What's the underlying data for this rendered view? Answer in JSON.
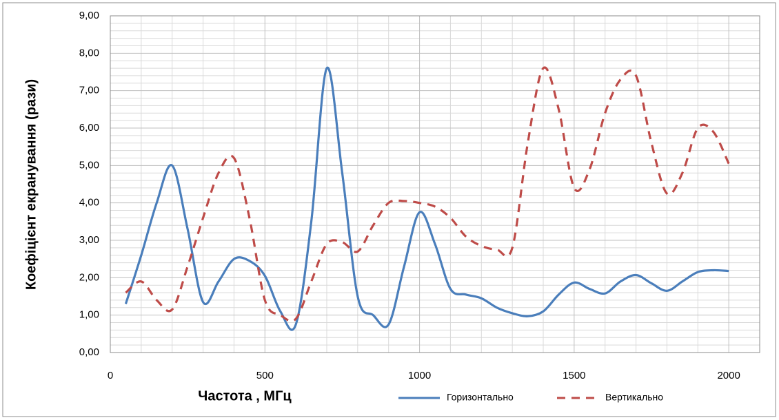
{
  "chart_data": {
    "type": "line",
    "x_label": "Частота , МГц",
    "y_label": "Коефіцієнт екранування  (рази)",
    "x": [
      50,
      100,
      150,
      200,
      250,
      300,
      350,
      400,
      450,
      500,
      550,
      600,
      650,
      700,
      750,
      800,
      850,
      900,
      950,
      1000,
      1050,
      1100,
      1150,
      1200,
      1250,
      1300,
      1350,
      1400,
      1450,
      1500,
      1550,
      1600,
      1650,
      1700,
      1750,
      1800,
      1850,
      1900,
      1950,
      2000
    ],
    "series": [
      {
        "name": "Горизонтально",
        "color": "#4a7ebb",
        "dash": false,
        "values": [
          1.3,
          2.6,
          4.0,
          5.0,
          3.3,
          1.35,
          1.9,
          2.5,
          2.45,
          2.05,
          1.1,
          0.75,
          3.5,
          7.6,
          4.8,
          1.5,
          1.0,
          0.75,
          2.3,
          3.75,
          2.9,
          1.7,
          1.55,
          1.45,
          1.2,
          1.05,
          0.97,
          1.1,
          1.55,
          1.87,
          1.7,
          1.58,
          1.9,
          2.07,
          1.85,
          1.65,
          1.9,
          2.15,
          2.2,
          2.18
        ]
      },
      {
        "name": "Вертикально",
        "color": "#be4b48",
        "dash": true,
        "values": [
          1.6,
          1.9,
          1.4,
          1.15,
          2.3,
          3.6,
          4.8,
          5.2,
          3.6,
          1.4,
          1.0,
          0.9,
          1.9,
          2.9,
          2.95,
          2.7,
          3.4,
          4.0,
          4.05,
          4.0,
          3.9,
          3.6,
          3.1,
          2.85,
          2.75,
          2.8,
          5.6,
          7.6,
          6.5,
          4.4,
          4.9,
          6.4,
          7.3,
          7.4,
          5.6,
          4.25,
          4.8,
          6.0,
          5.9,
          5.05
        ]
      }
    ],
    "xlim": [
      0,
      2100
    ],
    "xticks": [
      0,
      500,
      1000,
      1500,
      2000
    ],
    "ylim": [
      0,
      9
    ],
    "yticks": [
      {
        "value": 0,
        "label": "0,00"
      },
      {
        "value": 1,
        "label": "1,00"
      },
      {
        "value": 2,
        "label": "2,00"
      },
      {
        "value": 3,
        "label": "3,00"
      },
      {
        "value": 4,
        "label": "4,00"
      },
      {
        "value": 5,
        "label": "5,00"
      },
      {
        "value": 6,
        "label": "6,00"
      },
      {
        "value": 7,
        "label": "7,00"
      },
      {
        "value": 8,
        "label": "8,00"
      },
      {
        "value": 9,
        "label": "9,00"
      }
    ],
    "grid": true,
    "legend": "bottom"
  }
}
